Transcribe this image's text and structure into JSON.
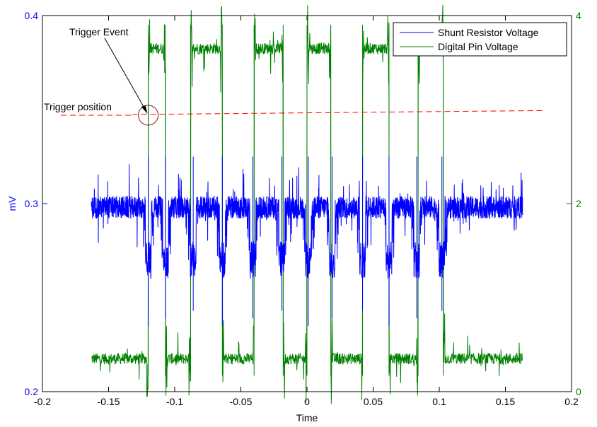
{
  "chart_data": {
    "type": "line",
    "xlabel": "Time",
    "ylabel_left": "mV",
    "ylabel_right": "",
    "xlim": [
      -0.2,
      0.2
    ],
    "ylim_left": [
      0.2,
      0.4
    ],
    "ylim_right": [
      0,
      4
    ],
    "x_ticks": [
      "-0.2",
      "-0.15",
      "-0.1",
      "-0.05",
      "0",
      "0.05",
      "0.1",
      "0.15",
      "0.2"
    ],
    "y_left_ticks": [
      "0.2",
      "0.3",
      "0.4"
    ],
    "y_right_ticks": [
      "0",
      "2",
      "4"
    ],
    "grid": false,
    "legend_position": "top-right",
    "colors": {
      "left_axis": "#0000ff",
      "right_axis": "#008000",
      "trigger_line": "#ff0000",
      "trigger_circle": "#8b1a1a"
    },
    "series": [
      {
        "name": "Shunt Resistor Voltage",
        "axis": "left",
        "color": "#0000ff",
        "x_range": [
          -0.163,
          0.163
        ],
        "baseline": 0.298,
        "dip_level": 0.27,
        "dip_times": [
          -0.12,
          -0.107,
          -0.086,
          -0.064,
          -0.041,
          -0.019,
          0.001,
          0.019,
          0.042,
          0.062,
          0.083,
          0.102
        ]
      },
      {
        "name": "Digital Pin Voltage",
        "axis": "right",
        "color": "#008000",
        "x_range": [
          -0.163,
          0.163
        ],
        "low": 0.35,
        "high": 3.65,
        "high_intervals": [
          [
            -0.12,
            -0.107
          ],
          [
            -0.088,
            -0.064
          ],
          [
            -0.04,
            -0.018
          ],
          [
            0.0,
            0.018
          ],
          [
            0.042,
            0.062
          ],
          [
            0.084,
            0.103
          ]
        ]
      }
    ],
    "annotations": {
      "trigger_event_label": "Trigger Event",
      "trigger_position_label": "Trigger position",
      "trigger_time": -0.12,
      "trigger_level_start": 0.347,
      "trigger_level_end": 0.3495
    }
  }
}
